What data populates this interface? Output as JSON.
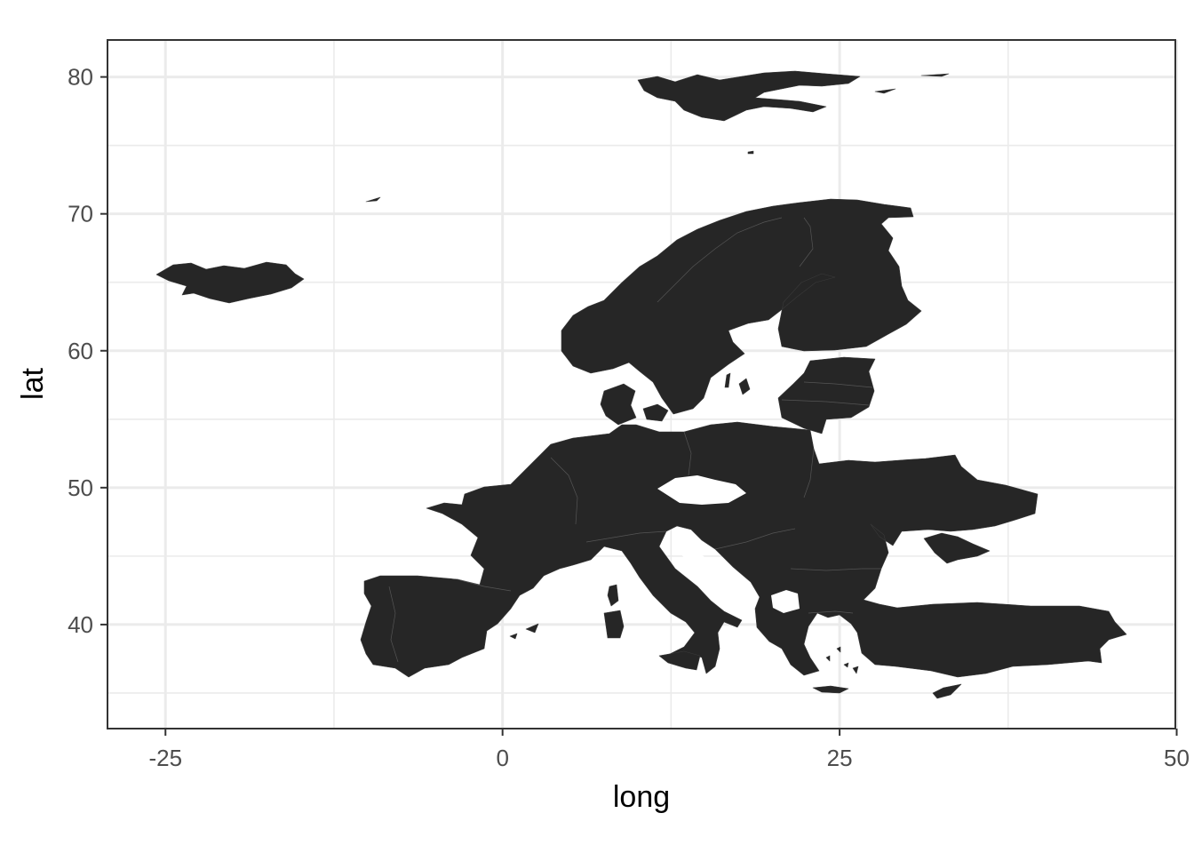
{
  "chart_data": {
    "type": "map",
    "xlabel": "long",
    "ylabel": "lat",
    "xlim": [
      -29.3,
      49.9
    ],
    "ylim": [
      32.4,
      82.7
    ],
    "x_ticks": [
      {
        "value": -25,
        "label": "-25"
      },
      {
        "value": 0,
        "label": "0"
      },
      {
        "value": 25,
        "label": "25"
      },
      {
        "value": 50,
        "label": "50"
      }
    ],
    "y_ticks": [
      {
        "value": 40,
        "label": "40"
      },
      {
        "value": 50,
        "label": "50"
      },
      {
        "value": 60,
        "label": "60"
      },
      {
        "value": 70,
        "label": "70"
      },
      {
        "value": 80,
        "label": "80"
      }
    ],
    "x_minor": [
      -12.5,
      12.5,
      37.5
    ],
    "y_minor": [
      35,
      45,
      55,
      65,
      75
    ],
    "grid": true,
    "fill_color": "#262626",
    "region": "Europe"
  }
}
